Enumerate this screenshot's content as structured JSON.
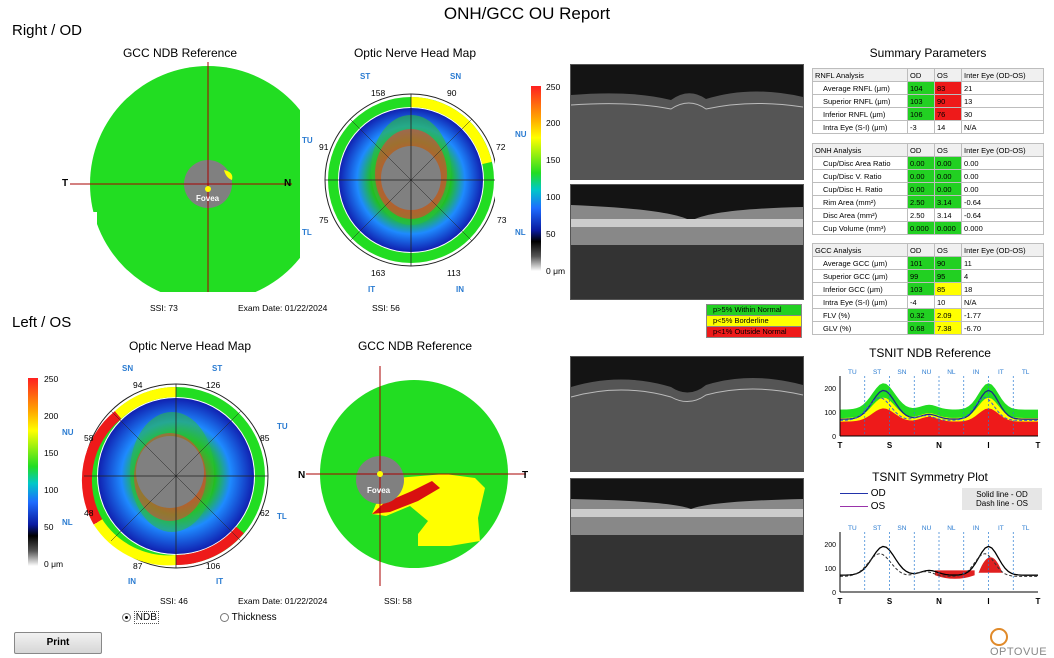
{
  "report_title": "ONH/GCC OU Report",
  "right": {
    "section": "Right / OD",
    "gcc_title": "GCC NDB Reference",
    "onh_title": "Optic Nerve Head Map",
    "dir_left": "T",
    "dir_right": "N",
    "fovea": "Fovea",
    "ssi_gcc": "SSI: 73",
    "exam_date": "Exam Date: 01/22/2024",
    "ssi_onh": "SSI: 56",
    "sectors": {
      "ST": "ST",
      "SN": "SN",
      "NU": "NU",
      "NL": "NL",
      "IN": "IN",
      "IT": "IT",
      "TL": "TL",
      "TU": "TU"
    },
    "values": {
      "st": "158",
      "sn": "90",
      "nu": "72",
      "nl": "73",
      "in": "113",
      "it": "163",
      "tl": "75",
      "tu": "91"
    }
  },
  "left": {
    "section": "Left / OS",
    "onh_title": "Optic Nerve Head Map",
    "gcc_title": "GCC NDB Reference",
    "dir_left": "N",
    "dir_right": "T",
    "fovea": "Fovea",
    "ssi_onh": "SSI: 46",
    "exam_date": "Exam Date: 01/22/2024",
    "ssi_gcc": "SSI: 58",
    "sectors": {
      "SN": "SN",
      "ST": "ST",
      "TU": "TU",
      "TL": "TL",
      "IT": "IT",
      "IN": "IN",
      "NL": "NL",
      "NU": "NU"
    },
    "values": {
      "sn": "94",
      "st": "126",
      "tu": "85",
      "tl": "62",
      "it": "106",
      "in": "87",
      "nl": "48",
      "nu": "58"
    }
  },
  "scale": {
    "t250": "250",
    "t200": "200",
    "t150": "150",
    "t100": "100",
    "t50": "50",
    "t0": "0 μm"
  },
  "summary": {
    "title": "Summary Parameters",
    "rnfl": {
      "header": [
        "RNFL Analysis",
        "OD",
        "OS",
        "Inter Eye (OD-OS)"
      ],
      "rows": [
        {
          "label": "Average RNFL (μm)",
          "od": "104",
          "os": "83",
          "diff": "21",
          "odc": "g",
          "osc": "r"
        },
        {
          "label": "Superior RNFL (μm)",
          "od": "103",
          "os": "90",
          "diff": "13",
          "odc": "g",
          "osc": "r"
        },
        {
          "label": "Inferior RNFL (μm)",
          "od": "106",
          "os": "76",
          "diff": "30",
          "odc": "g",
          "osc": "r"
        },
        {
          "label": "Intra Eye (S-I) (μm)",
          "od": "-3",
          "os": "14",
          "diff": "N/A",
          "odc": "w",
          "osc": "w"
        }
      ]
    },
    "onh": {
      "header": [
        "ONH Analysis",
        "OD",
        "OS",
        "Inter Eye (OD-OS)"
      ],
      "rows": [
        {
          "label": "Cup/Disc Area Ratio",
          "od": "0.00",
          "os": "0.00",
          "diff": "0.00",
          "odc": "g",
          "osc": "g"
        },
        {
          "label": "Cup/Disc V. Ratio",
          "od": "0.00",
          "os": "0.00",
          "diff": "0.00",
          "odc": "g",
          "osc": "g"
        },
        {
          "label": "Cup/Disc H. Ratio",
          "od": "0.00",
          "os": "0.00",
          "diff": "0.00",
          "odc": "g",
          "osc": "g"
        },
        {
          "label": "Rim Area (mm²)",
          "od": "2.50",
          "os": "3.14",
          "diff": "-0.64",
          "odc": "g",
          "osc": "g"
        },
        {
          "label": "Disc Area (mm²)",
          "od": "2.50",
          "os": "3.14",
          "diff": "-0.64",
          "odc": "w",
          "osc": "w"
        },
        {
          "label": "Cup Volume (mm³)",
          "od": "0.000",
          "os": "0.000",
          "diff": "0.000",
          "odc": "g",
          "osc": "g"
        }
      ]
    },
    "gcc": {
      "header": [
        "GCC Analysis",
        "OD",
        "OS",
        "Inter Eye (OD-OS)"
      ],
      "rows": [
        {
          "label": "Average GCC (μm)",
          "od": "101",
          "os": "90",
          "diff": "11",
          "odc": "g",
          "osc": "g"
        },
        {
          "label": "Superior GCC (μm)",
          "od": "99",
          "os": "95",
          "diff": "4",
          "odc": "g",
          "osc": "g"
        },
        {
          "label": "Inferior GCC (μm)",
          "od": "103",
          "os": "85",
          "diff": "18",
          "odc": "g",
          "osc": "y"
        },
        {
          "label": "Intra Eye (S-I) (μm)",
          "od": "-4",
          "os": "10",
          "diff": "N/A",
          "odc": "w",
          "osc": "w"
        },
        {
          "label": "FLV (%)",
          "od": "0.32",
          "os": "2.09",
          "diff": "-1.77",
          "odc": "g",
          "osc": "y"
        },
        {
          "label": "GLV (%)",
          "od": "0.68",
          "os": "7.38",
          "diff": "-6.70",
          "odc": "g",
          "osc": "y"
        }
      ]
    }
  },
  "legend": {
    "normal": "p>5% Within Normal",
    "borderline": "p<5% Borderline",
    "outside": "p<1% Outside Normal"
  },
  "tsnit_ndb": {
    "title": "TSNIT NDB Reference",
    "sectors": [
      "TU",
      "ST",
      "SN",
      "NU",
      "NL",
      "IN",
      "IT",
      "TL"
    ],
    "yticks": [
      "200",
      "100",
      "0"
    ],
    "xlabels": [
      "T",
      "S",
      "N",
      "I",
      "T"
    ]
  },
  "tsnit_sym": {
    "title": "TSNIT Symmetry Plot",
    "od": "OD",
    "os": "OS",
    "solid": "Solid line - OD",
    "dash": "Dash line - OS",
    "sectors": [
      "TU",
      "ST",
      "SN",
      "NU",
      "NL",
      "IN",
      "IT",
      "TL"
    ],
    "yticks": [
      "200",
      "100",
      "0"
    ],
    "xlabels": [
      "T",
      "S",
      "N",
      "I",
      "T"
    ]
  },
  "controls": {
    "ndb": "NDB",
    "thickness": "Thickness",
    "print": "Print",
    "selected": "NDB"
  },
  "brand": "OPTOVUE",
  "colors": {
    "normal": "#22d022",
    "borderline": "#ffff00",
    "outside": "#ee1a1a"
  }
}
